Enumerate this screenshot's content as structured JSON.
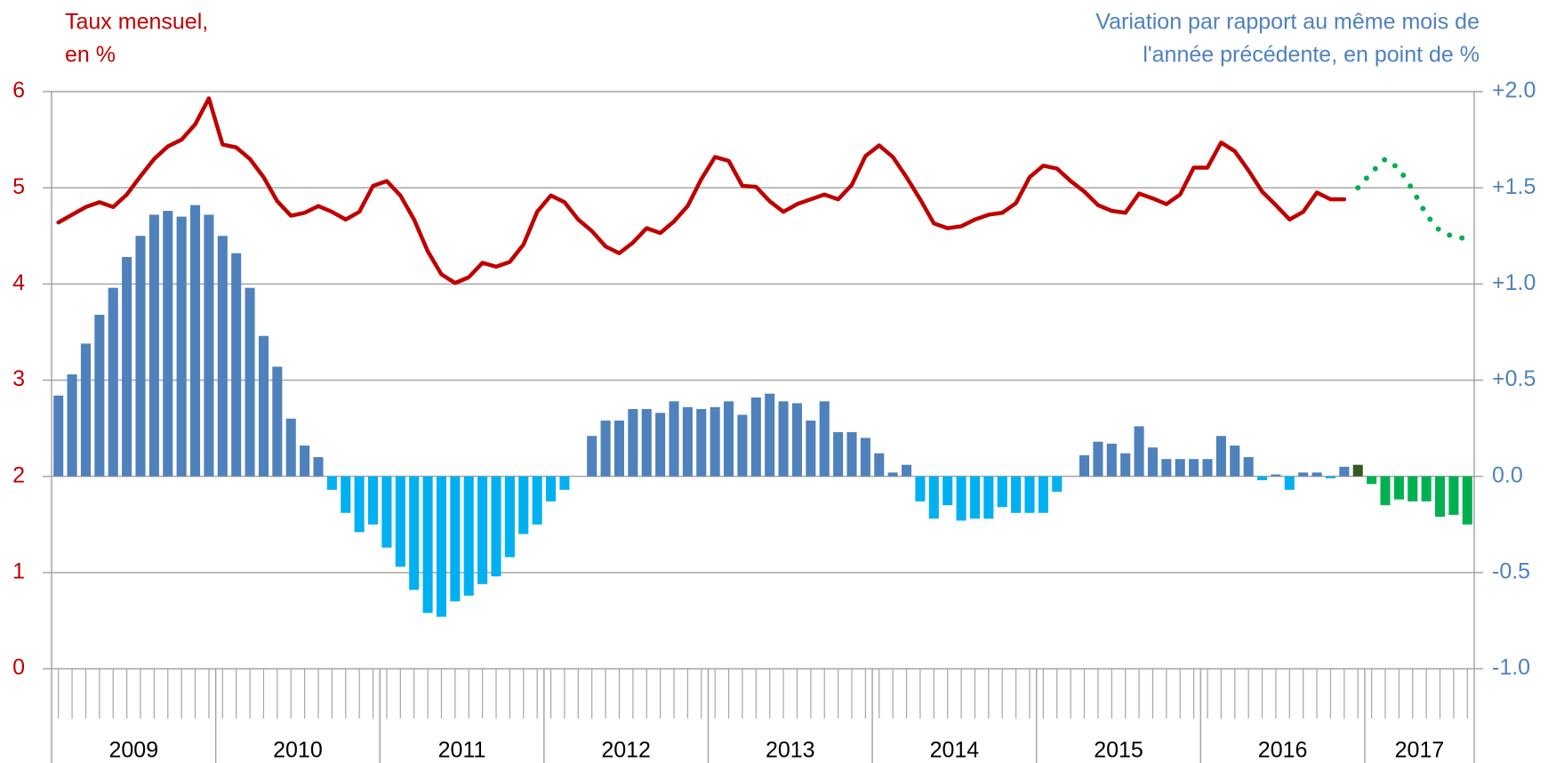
{
  "chart_data": {
    "type": "bar_line",
    "y_title": [
      "Taux mensuel,",
      "en %"
    ],
    "y2_title": [
      "Variation par rapport au même mois de",
      "l'année précédente, en point de %"
    ],
    "y_color": "#c00000",
    "y2_color": "#4f81bd",
    "categories": [
      null,
      null,
      null,
      null,
      null,
      null,
      null,
      null,
      null,
      null,
      null,
      null,
      null,
      null,
      null,
      null,
      null,
      null,
      null,
      null,
      null,
      null,
      null,
      null,
      null,
      null,
      null,
      null,
      null,
      null,
      null,
      null,
      null,
      null,
      null,
      null,
      null,
      null,
      null,
      null,
      null,
      null,
      null,
      null,
      null,
      null,
      null,
      null,
      null,
      null,
      null,
      null,
      null,
      null,
      null,
      null,
      null,
      null,
      null,
      null,
      null,
      null,
      null,
      null,
      null,
      null,
      null,
      null,
      null,
      null,
      null,
      null,
      null,
      null,
      null,
      null,
      null,
      null,
      null,
      null,
      null,
      null,
      null,
      null,
      null,
      null,
      null,
      null,
      null,
      null,
      null,
      null,
      null,
      null,
      null,
      null,
      null,
      null,
      null,
      null,
      null,
      null,
      null,
      null
    ],
    "year_groups": [
      "2009",
      "2010",
      "2011",
      "2012",
      "2013",
      "2014",
      "2015",
      "2016",
      "2017"
    ],
    "ylim": [
      0,
      6
    ],
    "yticks": [
      0,
      1,
      2,
      3,
      4,
      5,
      6
    ],
    "y2lim": [
      -1,
      2
    ],
    "y2ticks": [
      {
        "value": -1,
        "label": "-1.0"
      },
      {
        "value": -0.5,
        "label": "-0.5"
      },
      {
        "value": 0,
        "label": "0.0"
      },
      {
        "value": 0.5,
        "label": "+0.5"
      },
      {
        "value": 1,
        "label": "+1.0"
      },
      {
        "value": 1.5,
        "label": "+1.5"
      },
      {
        "value": 2,
        "label": "+2.0"
      }
    ],
    "grid": true,
    "series": [
      {
        "type": "bar",
        "axis": "y2",
        "color": "#4f81bd",
        "negative_color": "#00b0f0",
        "values": [
          0.42,
          0.53,
          0.69,
          0.84,
          0.98,
          1.14,
          1.25,
          1.36,
          1.38,
          1.35,
          1.41,
          1.36,
          1.25,
          1.16,
          0.98,
          0.73,
          0.57,
          0.3,
          0.16,
          0.1,
          -0.07,
          -0.19,
          -0.29,
          -0.25,
          -0.37,
          -0.47,
          -0.59,
          -0.71,
          -0.73,
          -0.65,
          -0.62,
          -0.56,
          -0.52,
          -0.42,
          -0.3,
          -0.25,
          -0.13,
          -0.07,
          0,
          0.21,
          0.29,
          0.29,
          0.35,
          0.35,
          0.33,
          0.39,
          0.36,
          0.35,
          0.36,
          0.39,
          0.32,
          0.41,
          0.43,
          0.39,
          0.38,
          0.29,
          0.39,
          0.23,
          0.23,
          0.2,
          0.12,
          0.02,
          0.06,
          -0.13,
          -0.22,
          -0.15,
          -0.23,
          -0.22,
          -0.22,
          -0.16,
          -0.19,
          -0.19,
          -0.19,
          -0.08,
          0,
          0.11,
          0.18,
          0.17,
          0.12,
          0.26,
          0.15,
          0.09,
          0.09,
          0.09,
          0.09,
          0.21,
          0.16,
          0.1,
          -0.02,
          0.01,
          -0.07,
          0.02,
          0.02,
          -0.01,
          0.05,
          null,
          null,
          null,
          null,
          null,
          null,
          null,
          null,
          null
        ]
      },
      {
        "type": "bar",
        "axis": "y2",
        "color": "#375623",
        "values": [
          null,
          null,
          null,
          null,
          null,
          null,
          null,
          null,
          null,
          null,
          null,
          null,
          null,
          null,
          null,
          null,
          null,
          null,
          null,
          null,
          null,
          null,
          null,
          null,
          null,
          null,
          null,
          null,
          null,
          null,
          null,
          null,
          null,
          null,
          null,
          null,
          null,
          null,
          null,
          null,
          null,
          null,
          null,
          null,
          null,
          null,
          null,
          null,
          null,
          null,
          null,
          null,
          null,
          null,
          null,
          null,
          null,
          null,
          null,
          null,
          null,
          null,
          null,
          null,
          null,
          null,
          null,
          null,
          null,
          null,
          null,
          null,
          null,
          null,
          null,
          null,
          null,
          null,
          null,
          null,
          null,
          null,
          null,
          null,
          null,
          null,
          null,
          null,
          null,
          null,
          null,
          null,
          null,
          null,
          null,
          0.06,
          null,
          null,
          null,
          null,
          null,
          null,
          null,
          null
        ]
      },
      {
        "type": "bar",
        "axis": "y2",
        "color": "#00b050",
        "values": [
          null,
          null,
          null,
          null,
          null,
          null,
          null,
          null,
          null,
          null,
          null,
          null,
          null,
          null,
          null,
          null,
          null,
          null,
          null,
          null,
          null,
          null,
          null,
          null,
          null,
          null,
          null,
          null,
          null,
          null,
          null,
          null,
          null,
          null,
          null,
          null,
          null,
          null,
          null,
          null,
          null,
          null,
          null,
          null,
          null,
          null,
          null,
          null,
          null,
          null,
          null,
          null,
          null,
          null,
          null,
          null,
          null,
          null,
          null,
          null,
          null,
          null,
          null,
          null,
          null,
          null,
          null,
          null,
          null,
          null,
          null,
          null,
          null,
          null,
          null,
          null,
          null,
          null,
          null,
          null,
          null,
          null,
          null,
          null,
          null,
          null,
          null,
          null,
          null,
          null,
          null,
          null,
          null,
          null,
          null,
          null,
          -0.04,
          -0.15,
          -0.12,
          -0.13,
          -0.13,
          -0.21,
          -0.2,
          -0.25
        ]
      },
      {
        "type": "line",
        "axis": "y",
        "color": "#c00000",
        "values": [
          4.64,
          4.72,
          4.8,
          4.85,
          4.8,
          4.93,
          5.12,
          5.3,
          5.43,
          5.5,
          5.66,
          5.93,
          5.45,
          5.42,
          5.3,
          5.11,
          4.86,
          4.71,
          4.74,
          4.81,
          4.75,
          4.67,
          4.75,
          5.02,
          5.07,
          4.92,
          4.67,
          4.34,
          4.1,
          4.01,
          4.07,
          4.22,
          4.18,
          4.23,
          4.41,
          4.75,
          4.92,
          4.85,
          4.67,
          4.55,
          4.39,
          4.32,
          4.43,
          4.58,
          4.53,
          4.65,
          4.81,
          5.09,
          5.32,
          5.28,
          5.02,
          5.01,
          4.86,
          4.75,
          4.83,
          4.88,
          4.93,
          4.88,
          5.03,
          5.33,
          5.44,
          5.32,
          5.11,
          4.88,
          4.63,
          4.58,
          4.6,
          4.67,
          4.72,
          4.74,
          4.84,
          5.11,
          5.23,
          5.2,
          5.07,
          4.96,
          4.82,
          4.76,
          4.74,
          4.94,
          4.89,
          4.83,
          4.93,
          5.21,
          5.21,
          5.47,
          5.38,
          5.18,
          4.96,
          4.82,
          4.67,
          4.75,
          4.95,
          4.88,
          4.88,
          null,
          null,
          null,
          null,
          null,
          null,
          null,
          null,
          null
        ]
      },
      {
        "type": "line",
        "axis": "y",
        "color": "#00b050",
        "dotted": true,
        "values": [
          null,
          null,
          null,
          null,
          null,
          null,
          null,
          null,
          null,
          null,
          null,
          null,
          null,
          null,
          null,
          null,
          null,
          null,
          null,
          null,
          null,
          null,
          null,
          null,
          null,
          null,
          null,
          null,
          null,
          null,
          null,
          null,
          null,
          null,
          null,
          null,
          null,
          null,
          null,
          null,
          null,
          null,
          null,
          null,
          null,
          null,
          null,
          null,
          null,
          null,
          null,
          null,
          null,
          null,
          null,
          null,
          null,
          null,
          null,
          null,
          null,
          null,
          null,
          null,
          null,
          null,
          null,
          null,
          null,
          null,
          null,
          null,
          null,
          null,
          null,
          null,
          null,
          null,
          null,
          null,
          null,
          null,
          null,
          null,
          null,
          null,
          null,
          null,
          null,
          null,
          null,
          null,
          null,
          null,
          null,
          5.0,
          5.16,
          5.3,
          5.2,
          4.98,
          4.72,
          4.55,
          4.49,
          4.47
        ]
      }
    ]
  }
}
